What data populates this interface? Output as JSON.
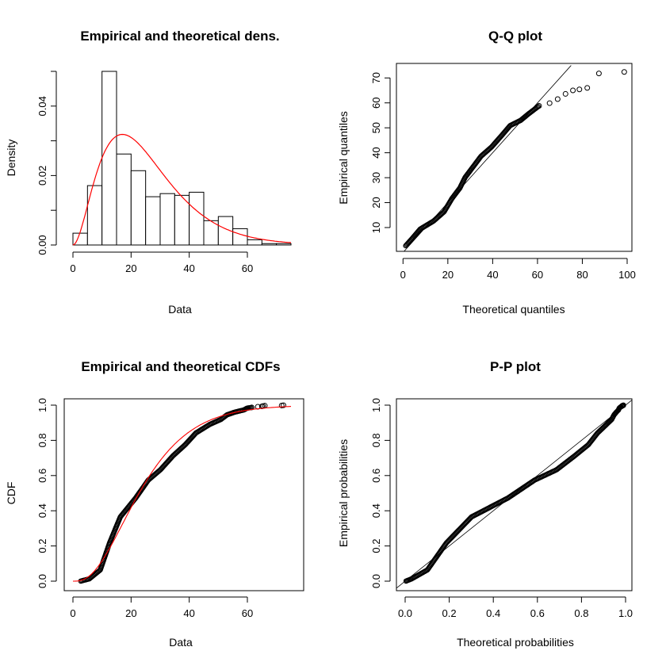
{
  "chart_data": [
    {
      "type": "bar",
      "title": "Empirical and theoretical dens.",
      "xlabel": "Data",
      "ylabel": "Density",
      "bin_edges": [
        0,
        5,
        10,
        15,
        20,
        25,
        30,
        35,
        40,
        45,
        50,
        55,
        60,
        65,
        70,
        75
      ],
      "values": [
        0.0034,
        0.0171,
        0.05,
        0.0262,
        0.0214,
        0.0139,
        0.0148,
        0.0143,
        0.0152,
        0.007,
        0.0082,
        0.0047,
        0.0015,
        0.0004,
        0.0004
      ],
      "theoretical_curve": {
        "distribution": "gamma",
        "shape": 3,
        "scale": 8.5,
        "color": "#ff0000"
      },
      "xticks": [
        0,
        20,
        40,
        60
      ],
      "xtick_labels": [
        "0",
        "20",
        "40",
        "60"
      ],
      "yticks": [
        0,
        0.01,
        0.02,
        0.03,
        0.04,
        0.05
      ],
      "ytick_labels": [
        "0.00",
        "",
        "0.02",
        "",
        "0.04",
        ""
      ],
      "xlim": [
        0,
        75
      ],
      "ylim": [
        0,
        0.05
      ]
    },
    {
      "type": "scatter",
      "title": "Q-Q plot",
      "xlabel": "Theoretical quantiles",
      "ylabel": "Empirical quantiles",
      "x": [
        1.2,
        4.1,
        7.7,
        13.6,
        18.3,
        21.8,
        25.4,
        27.7,
        31.3,
        34.8,
        39.5,
        44.2,
        47.8,
        52.5,
        56.0,
        60.7,
        65.4,
        69.0,
        72.5,
        75.8,
        78.7,
        82.2,
        87.4,
        98.7
      ],
      "y": [
        2.7,
        5.6,
        9.4,
        12.6,
        16.3,
        21.6,
        25.9,
        30.1,
        34.4,
        38.6,
        42.3,
        47.1,
        50.9,
        53.0,
        55.6,
        58.8,
        59.9,
        61.5,
        63.6,
        65.0,
        65.4,
        66.0,
        71.8,
        72.4
      ],
      "reference_line": "y = x",
      "xticks": [
        0,
        20,
        40,
        60,
        80,
        100
      ],
      "xtick_labels": [
        "0",
        "20",
        "40",
        "60",
        "80",
        "100"
      ],
      "yticks": [
        10,
        20,
        30,
        40,
        50,
        60,
        70
      ],
      "ytick_labels": [
        "10",
        "20",
        "30",
        "40",
        "50",
        "60",
        "70"
      ]
    },
    {
      "type": "scatter",
      "title": "Empirical and theoretical CDFs",
      "xlabel": "Data",
      "ylabel": "CDF",
      "x": [
        2.7,
        5.6,
        9.4,
        12.6,
        16.3,
        21.6,
        25.9,
        30.1,
        34.4,
        38.6,
        42.3,
        47.1,
        50.9,
        53.0,
        55.6,
        58.8,
        59.9,
        61.5,
        63.6,
        65.0,
        65.4,
        66.0,
        71.8,
        72.4
      ],
      "y": [
        0.0005,
        0.013,
        0.064,
        0.217,
        0.365,
        0.473,
        0.574,
        0.633,
        0.712,
        0.775,
        0.842,
        0.891,
        0.919,
        0.945,
        0.96,
        0.973,
        0.983,
        0.987,
        0.991,
        0.993,
        0.995,
        0.997,
        0.998,
        0.9995
      ],
      "theoretical_curve": {
        "distribution": "gamma",
        "shape": 3,
        "scale": 8.5,
        "color": "#ff0000"
      },
      "xticks": [
        0,
        20,
        40,
        60
      ],
      "xtick_labels": [
        "0",
        "20",
        "40",
        "60"
      ],
      "yticks": [
        0,
        0.2,
        0.4,
        0.6,
        0.8,
        1.0
      ],
      "ytick_labels": [
        "0.0",
        "0.2",
        "0.4",
        "0.6",
        "0.8",
        "1.0"
      ]
    },
    {
      "type": "scatter",
      "title": "P-P plot",
      "xlabel": "Theoretical probabilities",
      "ylabel": "Empirical probabilities",
      "x": [
        0.004,
        0.029,
        0.101,
        0.187,
        0.301,
        0.467,
        0.587,
        0.687,
        0.769,
        0.831,
        0.873,
        0.914,
        0.937,
        0.948,
        0.958,
        0.968,
        0.971,
        0.975,
        0.979,
        0.983,
        0.983,
        0.984,
        0.989,
        0.99
      ],
      "y": [
        0.0005,
        0.013,
        0.064,
        0.217,
        0.365,
        0.473,
        0.574,
        0.633,
        0.712,
        0.775,
        0.842,
        0.891,
        0.919,
        0.945,
        0.96,
        0.973,
        0.983,
        0.987,
        0.991,
        0.993,
        0.995,
        0.997,
        0.998,
        0.9995
      ],
      "reference_line": "y = x",
      "xticks": [
        0,
        0.2,
        0.4,
        0.6,
        0.8,
        1.0
      ],
      "xtick_labels": [
        "0.0",
        "0.2",
        "0.4",
        "0.6",
        "0.8",
        "1.0"
      ],
      "yticks": [
        0,
        0.2,
        0.4,
        0.6,
        0.8,
        1.0
      ],
      "ytick_labels": [
        "0.0",
        "0.2",
        "0.4",
        "0.6",
        "0.8",
        "1.0"
      ]
    }
  ]
}
